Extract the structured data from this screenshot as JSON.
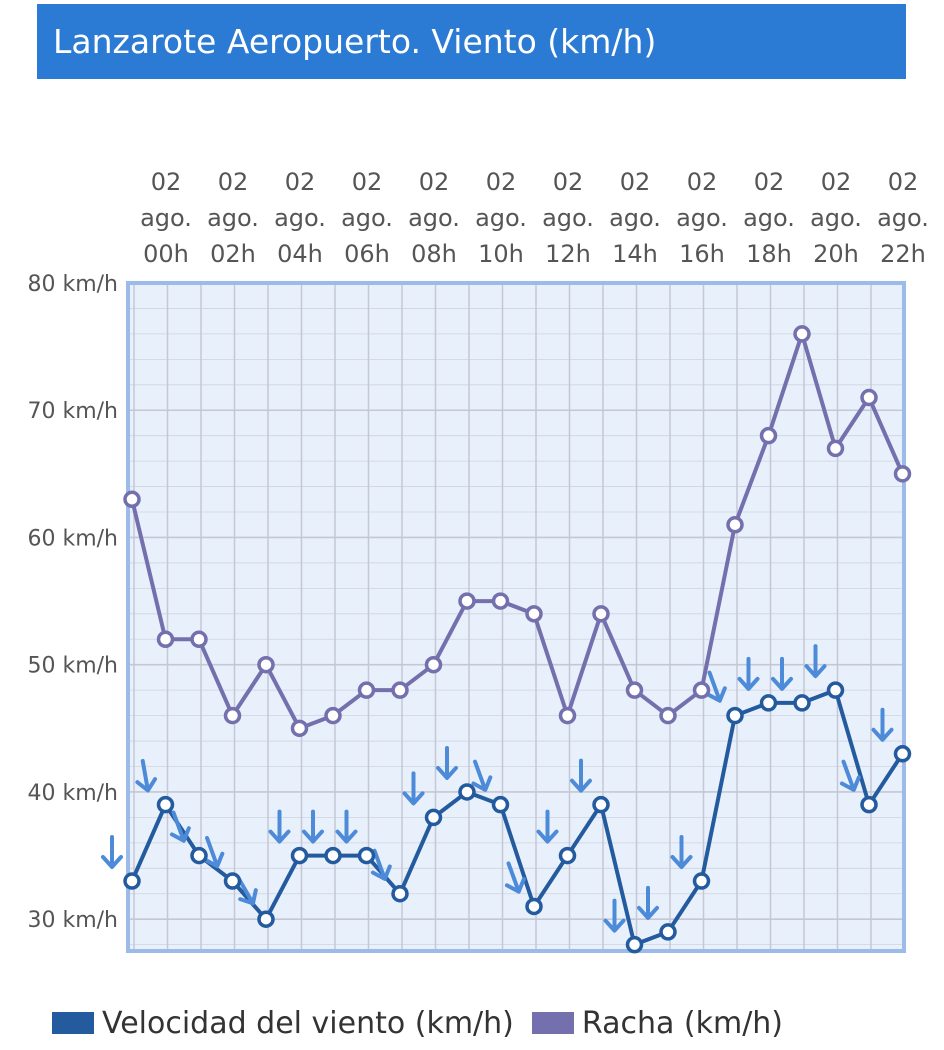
{
  "colors": {
    "header_bg": "#2b7ad4",
    "speed": "#245b9e",
    "gust": "#7470ad",
    "arrow": "#4d8bd9",
    "plot_bg": "#e8f0fc",
    "plot_border": "#9cbbe8",
    "grid": "#c4c7d4"
  },
  "chart_data": {
    "type": "line",
    "title": "Lanzarote Aeropuerto. Viento (km/h)",
    "x": [
      "00h",
      "01h",
      "02h",
      "03h",
      "04h",
      "05h",
      "06h",
      "07h",
      "08h",
      "09h",
      "10h",
      "11h",
      "12h",
      "13h",
      "14h",
      "15h",
      "16h",
      "17h",
      "18h",
      "19h",
      "20h",
      "21h",
      "22h",
      "23h"
    ],
    "x_tick_labels": [
      {
        "l1": "02",
        "l2": "ago.",
        "l3": "00h"
      },
      {
        "l1": "02",
        "l2": "ago.",
        "l3": "02h"
      },
      {
        "l1": "02",
        "l2": "ago.",
        "l3": "04h"
      },
      {
        "l1": "02",
        "l2": "ago.",
        "l3": "06h"
      },
      {
        "l1": "02",
        "l2": "ago.",
        "l3": "08h"
      },
      {
        "l1": "02",
        "l2": "ago.",
        "l3": "10h"
      },
      {
        "l1": "02",
        "l2": "ago.",
        "l3": "12h"
      },
      {
        "l1": "02",
        "l2": "ago.",
        "l3": "14h"
      },
      {
        "l1": "02",
        "l2": "ago.",
        "l3": "16h"
      },
      {
        "l1": "02",
        "l2": "ago.",
        "l3": "18h"
      },
      {
        "l1": "02",
        "l2": "ago.",
        "l3": "20h"
      },
      {
        "l1": "02",
        "l2": "ago.",
        "l3": "22h"
      }
    ],
    "y_ticks": [
      "30 km/h",
      "40 km/h",
      "50 km/h",
      "60 km/h",
      "70 km/h",
      "80 km/h"
    ],
    "y_tick_values": [
      30,
      40,
      50,
      60,
      70,
      80
    ],
    "ylim": [
      27.5,
      80
    ],
    "series": [
      {
        "name": "Velocidad del viento (km/h)",
        "values": [
          33,
          39,
          35,
          33,
          30,
          35,
          35,
          35,
          32,
          38,
          40,
          39,
          31,
          35,
          39,
          28,
          29,
          33,
          46,
          47,
          47,
          48,
          39,
          43
        ]
      },
      {
        "name": "Racha (km/h)",
        "values": [
          63,
          52,
          52,
          46,
          50,
          45,
          46,
          48,
          48,
          50,
          55,
          55,
          54,
          46,
          54,
          48,
          46,
          48,
          61,
          68,
          76,
          67,
          71,
          65
        ]
      }
    ],
    "wind_direction_arrows": {
      "description": "direction arrows shown per hour next to wind speed points",
      "angles_deg": [
        0,
        -10,
        -20,
        -20,
        -30,
        0,
        0,
        0,
        -20,
        0,
        0,
        -20,
        -20,
        0,
        0,
        0,
        0,
        0,
        -20,
        0,
        0,
        0,
        -20,
        0
      ]
    },
    "grid": true,
    "legend_position": "bottom"
  }
}
